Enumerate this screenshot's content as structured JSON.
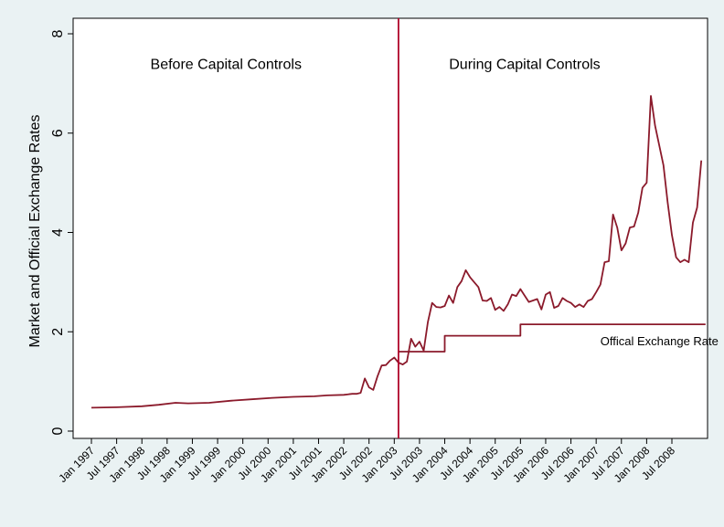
{
  "chart_data": {
    "type": "line",
    "title": "",
    "xlabel": "",
    "ylabel": "Market and Official Exchange Rates",
    "ylim": [
      0,
      8
    ],
    "yticks": [
      "0",
      "2",
      "4",
      "6",
      "8"
    ],
    "x_start_month": "1997-01",
    "x_end_month": "2008-12",
    "xticks": [
      "Jan 1997",
      "Jul 1997",
      "Jan 1998",
      "Jul 1998",
      "Jan 1999",
      "Jul 1999",
      "Jan 2000",
      "Jul 2000",
      "Jan 2001",
      "Jul 2001",
      "Jan 2002",
      "Jul 2002",
      "Jan 2003",
      "Jul 2003",
      "Jan 2004",
      "Jul 2004",
      "Jan 2005",
      "Jul 2005",
      "Jan 2006",
      "Jul 2006",
      "Jan 2007",
      "Jul 2007",
      "Jan 2008",
      "Jul 2008"
    ],
    "grid": false,
    "line_color": "#8b1a2b",
    "divider_color": "#b0002a",
    "divider_month": "2003-02",
    "region_labels": [
      {
        "text": "Before Capital Controls",
        "month": "1999-09",
        "y": 7.4
      },
      {
        "text": "During Capital Controls",
        "month": "2005-08",
        "y": 7.4
      }
    ],
    "annotations": [
      {
        "text": "Offical Exchange Rate",
        "month": "2007-02",
        "y": 1.82
      }
    ],
    "series": [
      {
        "points": [
          [
            "1997-01",
            0.47
          ],
          [
            "1997-07",
            0.48
          ],
          [
            "1998-01",
            0.5
          ],
          [
            "1998-05",
            0.53
          ],
          [
            "1998-09",
            0.57
          ],
          [
            "1998-12",
            0.56
          ],
          [
            "1999-05",
            0.57
          ],
          [
            "1999-10",
            0.61
          ],
          [
            "2000-03",
            0.64
          ],
          [
            "2000-08",
            0.67
          ],
          [
            "2001-01",
            0.69
          ],
          [
            "2001-06",
            0.7
          ],
          [
            "2001-09",
            0.72
          ],
          [
            "2002-01",
            0.73
          ],
          [
            "2002-03",
            0.75
          ],
          [
            "2002-04",
            0.75
          ],
          [
            "2002-05",
            0.77
          ],
          [
            "2002-06",
            1.06
          ],
          [
            "2002-07",
            0.88
          ],
          [
            "2002-08",
            0.83
          ],
          [
            "2002-09",
            1.1
          ],
          [
            "2002-10",
            1.32
          ],
          [
            "2002-11",
            1.33
          ],
          [
            "2002-12",
            1.42
          ],
          [
            "2003-01",
            1.48
          ],
          [
            "2003-02",
            1.38
          ],
          [
            "2003-03",
            1.34
          ],
          [
            "2003-04",
            1.4
          ],
          [
            "2003-05",
            1.86
          ],
          [
            "2003-06",
            1.7
          ],
          [
            "2003-07",
            1.8
          ],
          [
            "2003-08",
            1.62
          ],
          [
            "2003-09",
            2.2
          ],
          [
            "2003-10",
            2.58
          ],
          [
            "2003-11",
            2.5
          ],
          [
            "2003-12",
            2.49
          ],
          [
            "2004-01",
            2.52
          ],
          [
            "2004-02",
            2.73
          ],
          [
            "2004-03",
            2.58
          ],
          [
            "2004-04",
            2.9
          ],
          [
            "2004-05",
            3.02
          ],
          [
            "2004-06",
            3.24
          ],
          [
            "2004-07",
            3.1
          ],
          [
            "2004-08",
            3.0
          ],
          [
            "2004-09",
            2.9
          ],
          [
            "2004-10",
            2.63
          ],
          [
            "2004-11",
            2.62
          ],
          [
            "2004-12",
            2.68
          ],
          [
            "2005-01",
            2.44
          ],
          [
            "2005-02",
            2.5
          ],
          [
            "2005-03",
            2.42
          ],
          [
            "2005-04",
            2.55
          ],
          [
            "2005-05",
            2.75
          ],
          [
            "2005-06",
            2.72
          ],
          [
            "2005-07",
            2.86
          ],
          [
            "2005-08",
            2.73
          ],
          [
            "2005-09",
            2.6
          ],
          [
            "2005-10",
            2.63
          ],
          [
            "2005-11",
            2.66
          ],
          [
            "2005-12",
            2.45
          ],
          [
            "2006-01",
            2.75
          ],
          [
            "2006-02",
            2.8
          ],
          [
            "2006-03",
            2.48
          ],
          [
            "2006-04",
            2.52
          ],
          [
            "2006-05",
            2.68
          ],
          [
            "2006-06",
            2.62
          ],
          [
            "2006-07",
            2.58
          ],
          [
            "2006-08",
            2.5
          ],
          [
            "2006-09",
            2.55
          ],
          [
            "2006-10",
            2.5
          ],
          [
            "2006-11",
            2.62
          ],
          [
            "2006-12",
            2.66
          ],
          [
            "2007-01",
            2.8
          ],
          [
            "2007-02",
            2.95
          ],
          [
            "2007-03",
            3.4
          ],
          [
            "2007-04",
            3.42
          ],
          [
            "2007-05",
            4.36
          ],
          [
            "2007-06",
            4.1
          ],
          [
            "2007-07",
            3.64
          ],
          [
            "2007-08",
            3.78
          ],
          [
            "2007-09",
            4.1
          ],
          [
            "2007-10",
            4.12
          ],
          [
            "2007-11",
            4.4
          ],
          [
            "2007-12",
            4.9
          ],
          [
            "2008-01",
            5.0
          ],
          [
            "2008-02",
            6.75
          ],
          [
            "2008-03",
            6.15
          ],
          [
            "2008-05",
            5.35
          ],
          [
            "2008-06",
            4.6
          ],
          [
            "2008-07",
            3.95
          ],
          [
            "2008-08",
            3.5
          ],
          [
            "2008-09",
            3.4
          ],
          [
            "2008-10",
            3.45
          ],
          [
            "2008-11",
            3.4
          ],
          [
            "2008-12",
            4.2
          ],
          [
            "2009-01",
            4.5
          ],
          [
            "2009-02",
            5.45
          ]
        ]
      },
      {
        "name": "Offical Exchange Rate",
        "points": [
          [
            "2003-02",
            1.6
          ],
          [
            "2004-01",
            1.6
          ],
          [
            "2004-01",
            1.92
          ],
          [
            "2005-07",
            1.92
          ],
          [
            "2005-07",
            2.15
          ],
          [
            "2009-03",
            2.15
          ]
        ]
      }
    ]
  }
}
